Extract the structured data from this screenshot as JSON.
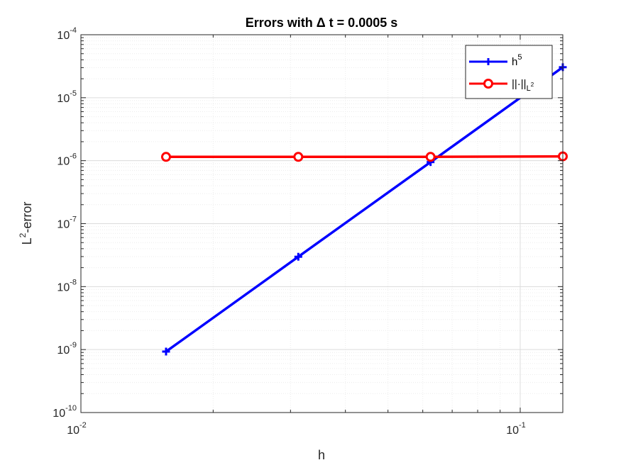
{
  "chart_data": {
    "type": "line",
    "title": "Errors with Δ t = 0.0005 s",
    "xlabel": "h",
    "ylabel_base": "L",
    "ylabel_sup": "2",
    "ylabel_rest": "-error",
    "x_scale": "log",
    "y_scale": "log",
    "xlim": [
      0.01,
      0.125
    ],
    "ylim": [
      1e-10,
      0.0001
    ],
    "grid": true,
    "minor_grid": true,
    "legend_position": "top-right",
    "x_ticks": [
      {
        "value": 0.01,
        "base": "10",
        "exp": "-2"
      },
      {
        "value": 0.1,
        "base": "10",
        "exp": "-1"
      }
    ],
    "y_ticks": [
      {
        "value": 1e-10,
        "base": "10",
        "exp": "-10"
      },
      {
        "value": 1e-09,
        "base": "10",
        "exp": "-9"
      },
      {
        "value": 1e-08,
        "base": "10",
        "exp": "-8"
      },
      {
        "value": 1e-07,
        "base": "10",
        "exp": "-7"
      },
      {
        "value": 1e-06,
        "base": "10",
        "exp": "-6"
      },
      {
        "value": 1e-05,
        "base": "10",
        "exp": "-5"
      },
      {
        "value": 0.0001,
        "base": "10",
        "exp": "-4"
      }
    ],
    "series": [
      {
        "name": "h^5",
        "legend_base": "h",
        "legend_sup": "5",
        "color": "#0000ff",
        "marker": "plus",
        "x": [
          0.015625,
          0.03125,
          0.0625,
          0.125
        ],
        "y": [
          9.3e-10,
          2.98e-08,
          9.5e-07,
          3.05e-05
        ]
      },
      {
        "name": "||·||_{L^2}",
        "legend_base": "||·||",
        "legend_sub": "L",
        "legend_subsup": "2",
        "color": "#ff0000",
        "marker": "circle",
        "x": [
          0.015625,
          0.03125,
          0.0625,
          0.125
        ],
        "y": [
          1.15e-06,
          1.15e-06,
          1.15e-06,
          1.17e-06
        ]
      }
    ]
  }
}
